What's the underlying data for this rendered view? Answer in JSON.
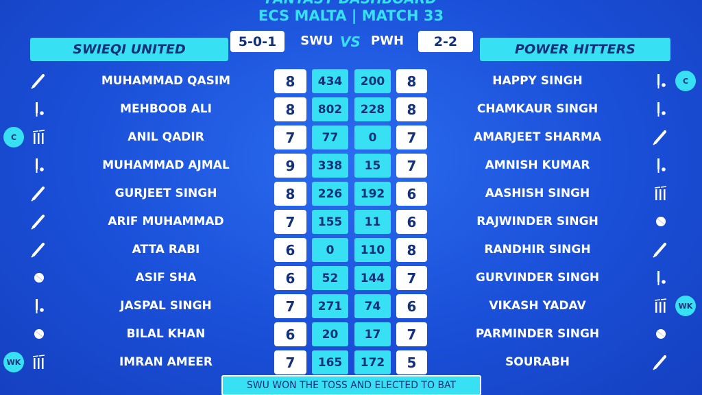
{
  "header": {
    "title": "FANTASY DASHBOARD",
    "subtitle": "ECS MALTA | MATCH 33"
  },
  "scoreboard": {
    "home_record": "5-0-1",
    "home_code": "SWU",
    "vs": "VS",
    "away_code": "PWH",
    "away_record": "2-2"
  },
  "teams": {
    "home": "SWIEQI UNITED",
    "away": "POWER HITTERS"
  },
  "rows": [
    {
      "home_player": "MUHAMMAD QASIM",
      "home_credit": 8,
      "home_points": 434,
      "away_points": 200,
      "away_credit": 8,
      "away_player": "HAPPY SINGH",
      "away_badge": "C"
    },
    {
      "home_player": "MEHBOOB ALI",
      "home_credit": 8,
      "home_points": 802,
      "away_points": 228,
      "away_credit": 8,
      "away_player": "CHAMKAUR SINGH"
    },
    {
      "home_player": "ANIL QADIR",
      "home_badge": "C",
      "home_credit": 7,
      "home_points": 77,
      "away_points": 0,
      "away_credit": 7,
      "away_player": "AMARJEET SHARMA"
    },
    {
      "home_player": "MUHAMMAD AJMAL",
      "home_credit": 9,
      "home_points": 338,
      "away_points": 15,
      "away_credit": 7,
      "away_player": "AMNISH KUMAR"
    },
    {
      "home_player": "GURJEET SINGH",
      "home_credit": 8,
      "home_points": 226,
      "away_points": 192,
      "away_credit": 6,
      "away_player": "AASHISH SINGH"
    },
    {
      "home_player": "ARIF MUHAMMAD",
      "home_credit": 7,
      "home_points": 155,
      "away_points": 11,
      "away_credit": 6,
      "away_player": "RAJWINDER SINGH"
    },
    {
      "home_player": "ATTA RABI",
      "home_credit": 6,
      "home_points": 0,
      "away_points": 110,
      "away_credit": 8,
      "away_player": "RANDHIR SINGH"
    },
    {
      "home_player": "ASIF SHA",
      "home_credit": 6,
      "home_points": 52,
      "away_points": 144,
      "away_credit": 7,
      "away_player": "GURVINDER SINGH"
    },
    {
      "home_player": "JASPAL SINGH",
      "home_credit": 7,
      "home_points": 271,
      "away_points": 74,
      "away_credit": 6,
      "away_player": "VIKASH YADAV",
      "away_badge": "WK"
    },
    {
      "home_player": "BILAL KHAN",
      "home_credit": 6,
      "home_points": 20,
      "away_points": 17,
      "away_credit": 7,
      "away_player": "PARMINDER SINGH"
    },
    {
      "home_player": "IMRAN AMEER",
      "home_badge": "WK",
      "home_credit": 7,
      "home_points": 165,
      "away_points": 172,
      "away_credit": 5,
      "away_player": "SOURABH"
    }
  ],
  "footer": "SWU WON THE TOSS AND ELECTED TO BAT"
}
